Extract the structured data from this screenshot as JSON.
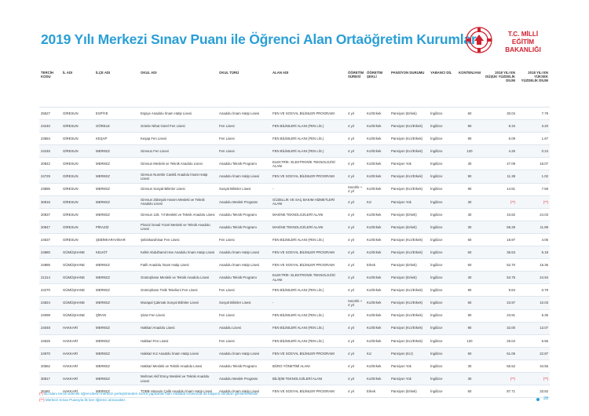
{
  "header": {
    "title": "2019 Yılı Merkezi Sınav Puanı ile Öğrenci Alan Ortaöğretim Kurumları",
    "logo_line1": "T.C. MİLLİ EĞİTİM",
    "logo_line2": "BAKANLIĞI",
    "logo_color": "#d0202e"
  },
  "columns": [
    "TERCİH KODU",
    "İL ADI",
    "İLÇE ADI",
    "OKUL ADI",
    "OKUL TÜRÜ",
    "ALAN ADI",
    "ÖĞRETİM SÜRESİ",
    "ÖĞRETİM ŞEKLİ",
    "PANSİYON DURUMU",
    "YABANCI DİL",
    "KONTENJANI",
    "2018 YILI EN DÜŞÜK YÜZDELİK DİLİM",
    "2018 YILI EN YÜKSEK YÜZDELİK DİLİM"
  ],
  "rows": [
    [
      "25527",
      "GİRESUN",
      "ESPİYE",
      "Espiye Anadolu İmam Hatip Lisesi",
      "Anadolu İmam Hatip Lisesi",
      "FEN VE SOSYAL BİLİMLER PROGRAMI",
      "4 yıl",
      "Kız/Erkek",
      "Pansiyon (Erkek)",
      "İngilizce",
      "60",
      "30.04",
      "7.79"
    ],
    [
      "24240",
      "GİRESUN",
      "GÖRELE",
      "Görele Nihat Gürel Fen Lisesi",
      "Fen Lisesi",
      "FEN BİLİMLERİ ALANI (FEN LİS.)",
      "4 yıl",
      "Kız/Erkek",
      "Pansiyon (Kız/Erkek)",
      "İngilizce",
      "90",
      "8.34",
      "3.20"
    ],
    [
      "23684",
      "GİRESUN",
      "KEŞAP",
      "Keşap Fen Lisesi",
      "Fen Lisesi",
      "FEN BİLİMLERİ ALANI (FEN LİS.)",
      "4 yıl",
      "Kız/Erkek",
      "Pansiyon (Kız/Erkek)",
      "İngilizce",
      "90",
      "6.09",
      "1.67"
    ],
    [
      "24245",
      "GİRESUN",
      "MERKEZ",
      "Giresun Fen Lisesi",
      "Fen Lisesi",
      "FEN BİLİMLERİ ALANI (FEN LİS.)",
      "4 yıl",
      "Kız/Erkek",
      "Pansiyon (Kız/Erkek)",
      "İngilizce",
      "120",
      "4.25",
      "0.24"
    ],
    [
      "20842",
      "GİRESUN",
      "MERKEZ",
      "Giresun Mesleki ve Teknik Anadolu Lisesi",
      "Anadolu Teknik Programı",
      "ELEKTRİK- ELEKTRONİK TEKNOLOJİSİ ALANI",
      "4 yıl",
      "Kız/Erkek",
      "Pansiyon Yok",
      "İngilizce",
      "30",
      "47.09",
      "18.07"
    ],
    [
      "24729",
      "GİRESUN",
      "MERKEZ",
      "Giresun Nurettin Canikli Anadolu İmam Hatip Lisesi",
      "Anadolu İmam Hatip Lisesi",
      "FEN VE SOSYAL BİLİMLER PROGRAMI",
      "4 yıl",
      "Kız/Erkek",
      "Pansiyon (Kız/Erkek)",
      "İngilizce",
      "90",
      "11.38",
      "1.02"
    ],
    [
      "23585",
      "GİRESUN",
      "MERKEZ",
      "Giresun Sosyal Bilimler Lisesi",
      "Sosyal Bilimler Lisesi",
      "-",
      "Hazırlık + 4 yıl",
      "Kız/Erkek",
      "Pansiyon (Kız/Erkek)",
      "İngilizce",
      "90",
      "14.81",
      "7.58"
    ],
    [
      "30816",
      "GİRESUN",
      "MERKEZ",
      "Giresun Zübeyde Hanım Mesleki ve Teknik Anadolu Lisesi",
      "Anadolu Meslek Programı",
      "GÜZELLİK VE SAÇ BAKIM HİZMETLERİ ALANI",
      "4 yıl",
      "Kız",
      "Pansiyon Yok",
      "İngilizce",
      "30",
      "(**)",
      "(**)"
    ],
    [
      "20837",
      "GİRESUN",
      "MERKEZ",
      "Giresun 125. Yıl Mesleki ve Teknik Anadolu Lisesi",
      "Anadolu Teknik Programı",
      "MAKİNE TEKNOLOJİLERİ ALANI",
      "4 yıl",
      "Kız/Erkek",
      "Pansiyon (Erkek)",
      "İngilizce",
      "30",
      "43.82",
      "24.03"
    ],
    [
      "20847",
      "GİRESUN",
      "PİRAZİZ",
      "Piraziz İsmail Yüzel Mesleki ve Teknik Anadolu Lisesi",
      "Anadolu Teknik Programı",
      "MAKİNE TEKNOLOJİLERİ ALANI",
      "4 yıl",
      "Kız/Erkek",
      "Pansiyon (Erkek)",
      "İngilizce",
      "30",
      "58.28",
      "11.89"
    ],
    [
      "24637",
      "GİRESUN",
      "ŞEBİNKARAHİSAR",
      "Şebinkarahisar Fen Lisesi",
      "Fen Lisesi",
      "FEN BİLİMLERİ ALANI (FEN LİS.)",
      "4 yıl",
      "Kız/Erkek",
      "Pansiyon (Kız/Erkek)",
      "İngilizce",
      "60",
      "18.97",
      "4.05"
    ],
    [
      "24880",
      "GÜMÜŞHANE",
      "KELKİT",
      "Kelkit Abdulhamit Han Anadolu İmam Hatip Lisesi",
      "Anadolu İmam Hatip Lisesi",
      "FEN VE SOSYAL BİLİMLER PROGRAMI",
      "4 yıl",
      "Kız/Erkek",
      "Pansiyon (Kız/Erkek)",
      "İngilizce",
      "60",
      "36.53",
      "5.19"
    ],
    [
      "24885",
      "GÜMÜŞHANE",
      "MERKEZ",
      "Fatih Anadolu İmam Hatip Lisesi",
      "Anadolu İmam Hatip Lisesi",
      "FEN VE SOSYAL BİLİMLER PROGRAMI",
      "4 yıl",
      "Erkek",
      "Pansiyon (Erkek)",
      "İngilizce",
      "60",
      "52.70",
      "15.36"
    ],
    [
      "21314",
      "GÜMÜŞHANE",
      "MERKEZ",
      "Gümüşhane Mesleki ve Teknik Anadolu Lisesi",
      "Anadolu Teknik Programı",
      "ELEKTRİK- ELEKTRONİK TEKNOLOJİSİ ALANI",
      "4 yıl",
      "Kız/Erkek",
      "Pansiyon (Erkek)",
      "İngilizce",
      "30",
      "53.75",
      "24.94"
    ],
    [
      "24270",
      "GÜMÜŞHANE",
      "MERKEZ",
      "Gümüşhane Tütik Tekelioni Fen Lisesi",
      "Fen Lisesi",
      "FEN BİLİMLERİ ALANI (FEN LİS.)",
      "4 yıl",
      "Kız/Erkek",
      "Pansiyon (Kız/Erkek)",
      "İngilizce",
      "90",
      "9.84",
      "0.79"
    ],
    [
      "24824",
      "GÜMÜŞHANE",
      "MERKEZ",
      "Murapal Çakmak Sosyal Bilimler Lisesi",
      "Sosyal Bilimler Lisesi",
      "-",
      "Hazırlık + 4 yıl",
      "Kız/Erkek",
      "Pansiyon (Kız/Erkek)",
      "İngilizce",
      "60",
      "23.97",
      "10.03"
    ],
    [
      "24098",
      "GÜMÜŞHANE",
      "ŞİRAN",
      "Şiran Fen Lisesi",
      "Fen Lisesi",
      "FEN BİLİMLERİ ALANI (FEN LİS.)",
      "4 yıl",
      "Kız/Erkek",
      "Pansiyon (Kız/Erkek)",
      "İngilizce",
      "90",
      "23.91",
      "5.35"
    ],
    [
      "24048",
      "HAKKARİ",
      "MERKEZ",
      "Hakkari Anadolu Lisesi",
      "Anadolu Lisesi",
      "FEN BİLİMLERİ ALANI (FEN LİS.)",
      "4 yıl",
      "Kız/Erkek",
      "Pansiyon (Kız/Erkek)",
      "İngilizce",
      "90",
      "32.00",
      "13.07"
    ],
    [
      "24625",
      "HAKKARİ",
      "MERKEZ",
      "Hakkari Fen Lisesi",
      "Fen Lisesi",
      "FEN BİLİMLERİ ALANI (FEN LİS.)",
      "4 yıl",
      "Kız/Erkek",
      "Pansiyon (Kız/Erkek)",
      "İngilizce",
      "120",
      "25.04",
      "6.56"
    ],
    [
      "24970",
      "HAKKARİ",
      "MERKEZ",
      "Hakkari Kız Anadolu İmam Hatip Lisesi",
      "Anadolu İmam Hatip Lisesi",
      "FEN VE SOSYAL BİLİMLER PROGRAMI",
      "4 yıl",
      "Kız",
      "Pansiyon (Kız)",
      "İngilizce",
      "60",
      "61.06",
      "22.87"
    ],
    [
      "20562",
      "HAKKARİ",
      "MERKEZ",
      "Hakkari Mesleki ve Teknik Anadolu Lisesi",
      "Anadolu Teknik Programı",
      "BÜRO YÖNETİMİ ALANI",
      "4 yıl",
      "Kız/Erkek",
      "Pansiyon Yok",
      "İngilizce",
      "30",
      "55.52",
      "34.55"
    ],
    [
      "30817",
      "HAKKARİ",
      "MERKEZ",
      "Mehmet Akif Ersoy Mesleki ve Teknik Anadolu Lisesi",
      "Anadolu Meslek Programı",
      "BİLİŞİM TEKNOLOJİLERİ ALANI",
      "4 yıl",
      "Kız/Erkek",
      "Pansiyon Yok",
      "İngilizce",
      "30",
      "(**)",
      "(**)"
    ],
    [
      "26481",
      "HAKKARİ",
      "MERKEZ",
      "TOBB Hüseyin Çelik Anadolu İmam Hatip Lisesi",
      "Anadolu İmam Hatip Lisesi",
      "FEN VE SOSYAL BİLİMLER PROGRAMI",
      "4 yıl",
      "Erkek",
      "Pansiyon (Erkek)",
      "İngilizce",
      "60",
      "87.71",
      "33.82"
    ]
  ],
  "notes": {
    "note1_mark": "(*)",
    "note1": "Bu alanı tercih edecek öğrencilerin merkezi yerleştirmeden sonra yapılacak olan mülakat sınavında da başarılı olmaları gerekmektedir.",
    "note2_mark": "(**)",
    "note2": "Merkezi Sınav Puanıyla ilk kez öğrenci alınacaktır."
  },
  "page_number": "28"
}
